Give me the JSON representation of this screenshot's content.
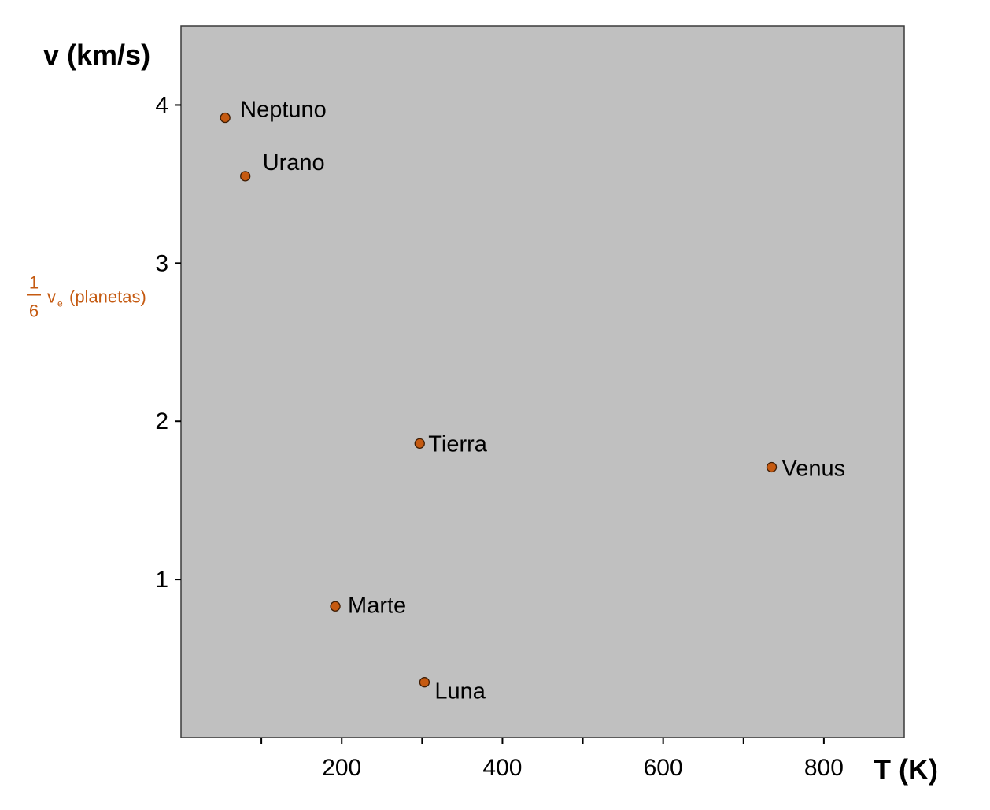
{
  "chart_data": {
    "type": "scatter",
    "xlabel": "T (K)",
    "ylabel": "v (km/s)",
    "xlim": [
      0,
      900
    ],
    "ylim": [
      0,
      4.5
    ],
    "x_ticks": [
      200,
      400,
      600,
      800
    ],
    "x_minor_ticks": [
      100,
      300,
      500,
      700
    ],
    "y_ticks": [
      1,
      2,
      3,
      4
    ],
    "grid": false,
    "background": "#c0c0c0",
    "marker_color": "#c55a11",
    "annotation": {
      "numerator": "1",
      "denominator": "6",
      "symbol": "v",
      "subscript": "e",
      "text": "(planetas)",
      "y": 2.75,
      "color": "#c55a11"
    },
    "points": [
      {
        "label": "Neptuno",
        "x": 55,
        "y": 3.92
      },
      {
        "label": "Urano",
        "x": 80,
        "y": 3.55
      },
      {
        "label": "Tierra",
        "x": 297,
        "y": 1.86
      },
      {
        "label": "Venus",
        "x": 735,
        "y": 1.71
      },
      {
        "label": "Marte",
        "x": 192,
        "y": 0.83
      },
      {
        "label": "Luna",
        "x": 303,
        "y": 0.35
      }
    ]
  }
}
